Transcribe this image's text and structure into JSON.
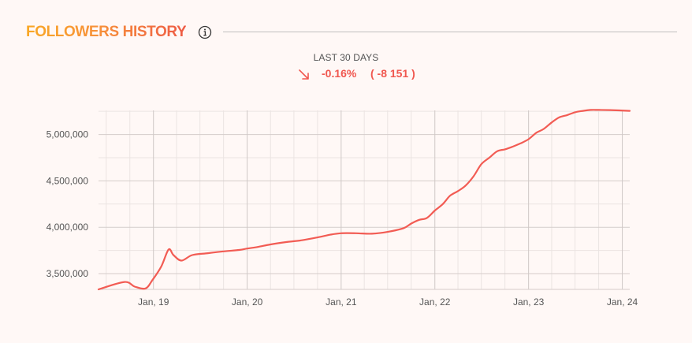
{
  "header": {
    "title": "FOLLOWERS HISTORY",
    "info_icon": "info-circle-icon",
    "title_gradient": [
      "#f9a825",
      "#ee5b45"
    ]
  },
  "summary": {
    "period_label": "LAST 30 DAYS",
    "trend_icon": "arrow-down-right-icon",
    "change_percent": "-0.16%",
    "change_absolute": "( -8 151 )",
    "change_color": "#f0574f"
  },
  "chart_data": {
    "type": "line",
    "title": "",
    "xlabel": "",
    "ylabel": "",
    "x_tick_labels": [
      "Jan, 19",
      "Jan, 20",
      "Jan, 21",
      "Jan, 22",
      "Jan, 23",
      "Jan, 24"
    ],
    "y_tick_labels": [
      "3,500,000",
      "4,000,000",
      "4,500,000",
      "5,000,000"
    ],
    "y_ticks": [
      3500000,
      4000000,
      4500000,
      5000000
    ],
    "xlim": [
      "2018-06-01",
      "2024-01-30"
    ],
    "ylim": [
      3330000,
      5260000
    ],
    "grid": true,
    "line_color": "#f25c54",
    "series": [
      {
        "x": [
          "2018-06-01",
          "2018-09-10",
          "2018-10-20",
          "2018-12-01",
          "2018-12-28",
          "2019-02-01",
          "2019-03-01",
          "2019-03-20",
          "2019-04-20",
          "2019-06-01",
          "2019-08-01",
          "2019-10-01",
          "2019-12-01",
          "2020-01-01",
          "2020-02-15",
          "2020-04-01",
          "2020-06-01",
          "2020-08-01",
          "2020-10-01",
          "2020-11-20",
          "2021-01-01",
          "2021-03-01",
          "2021-05-01",
          "2021-07-01",
          "2021-09-01",
          "2021-10-01",
          "2021-11-01",
          "2021-12-01",
          "2022-01-01",
          "2022-02-01",
          "2022-03-01",
          "2022-04-01",
          "2022-05-01",
          "2022-06-01",
          "2022-07-01",
          "2022-08-01",
          "2022-09-01",
          "2022-10-01",
          "2022-11-01",
          "2022-12-01",
          "2023-01-01",
          "2023-02-01",
          "2023-03-01",
          "2023-04-01",
          "2023-05-01",
          "2023-06-01",
          "2023-07-01",
          "2023-08-01",
          "2023-09-01",
          "2023-10-01",
          "2023-11-15",
          "2024-01-30"
        ],
        "values": [
          3330000,
          3410000,
          3360000,
          3340000,
          3430000,
          3580000,
          3760000,
          3700000,
          3640000,
          3700000,
          3720000,
          3740000,
          3755000,
          3770000,
          3790000,
          3815000,
          3840000,
          3860000,
          3890000,
          3920000,
          3935000,
          3935000,
          3930000,
          3950000,
          3990000,
          4040000,
          4080000,
          4100000,
          4180000,
          4250000,
          4340000,
          4390000,
          4450000,
          4550000,
          4680000,
          4750000,
          4820000,
          4840000,
          4870000,
          4905000,
          4950000,
          5020000,
          5060000,
          5130000,
          5185000,
          5210000,
          5240000,
          5255000,
          5265000,
          5265000,
          5263000,
          5255000
        ]
      }
    ]
  }
}
